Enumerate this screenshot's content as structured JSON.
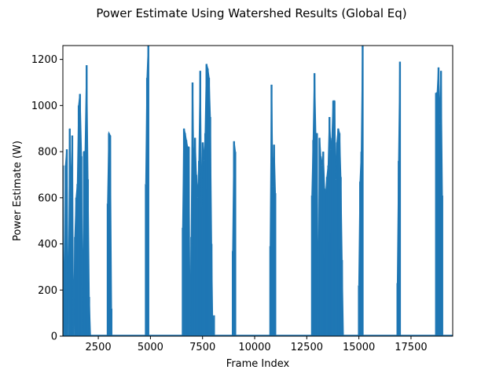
{
  "chart_data": {
    "type": "line",
    "title": "Power Estimate Using Watershed Results (Global Eq)",
    "xlabel": "Frame Index",
    "ylabel": "Power Estimate (W)",
    "xlim": [
      800,
      19500
    ],
    "ylim": [
      0,
      1260
    ],
    "xticks": [
      2500,
      5000,
      7500,
      10000,
      12500,
      15000,
      17500
    ],
    "yticks": [
      0,
      200,
      400,
      600,
      800,
      1000,
      1200
    ],
    "grid": false,
    "legend": "none",
    "series": [
      {
        "color": "#1f77b4",
        "bursts": [
          {
            "x": [
              800,
              870,
              930,
              990,
              1060,
              1130,
              1190,
              1250,
              1310,
              1380,
              1440,
              1500,
              1560,
              1620,
              1690,
              1750,
              1810,
              1870,
              1940,
              2000,
              2060,
              2120
            ],
            "y": [
              740,
              0,
              740,
              810,
              0,
              900,
              600,
              870,
              0,
              430,
              600,
              660,
              1000,
              1050,
              780,
              0,
              800,
              800,
              1175,
              680,
              170,
              0
            ]
          },
          {
            "x": [
              2950,
              3010,
              3070,
              3130
            ],
            "y": [
              575,
              880,
              870,
              120
            ]
          },
          {
            "x": [
              4780,
              4840,
              4900
            ],
            "y": [
              660,
              1120,
              1260
            ]
          },
          {
            "x": [
              6550,
              6610,
              6660,
              6720,
              6780,
              6840,
              6900,
              6960,
              7020,
              7080,
              7140,
              7200,
              7260,
              7330,
              7390,
              7450,
              7510,
              7570,
              7630,
              7690,
              7750,
              7810,
              7870,
              7930,
              7990,
              8050
            ],
            "y": [
              470,
              900,
              880,
              850,
              820,
              820,
              0,
              430,
              1100,
              710,
              860,
              700,
              600,
              760,
              1150,
              560,
              840,
              760,
              880,
              1180,
              1160,
              1120,
              950,
              400,
              0,
              90
            ]
          },
          {
            "x": [
              8950,
              9010,
              9070
            ],
            "y": [
              370,
              845,
              800
            ]
          },
          {
            "x": [
              10750,
              10810,
              10870,
              10930,
              10990
            ],
            "y": [
              390,
              1090,
              650,
              830,
              620
            ]
          },
          {
            "x": [
              12750,
              12810,
              12870,
              12930,
              12990,
              13050,
              13110,
              13170,
              13230,
              13290,
              13350,
              13410,
              13470,
              13530,
              13590,
              13650,
              13710,
              13770,
              13830,
              13890,
              13950,
              14010,
              14070,
              14130,
              14190,
              14250
            ],
            "y": [
              610,
              850,
              1140,
              870,
              880,
              0,
              860,
              780,
              740,
              800,
              640,
              620,
              690,
              740,
              950,
              810,
              860,
              1020,
              1020,
              680,
              840,
              900,
              880,
              690,
              330,
              0
            ]
          },
          {
            "x": [
              15000,
              15060,
              15120,
              15180
            ],
            "y": [
              220,
              670,
              800,
              1260
            ]
          },
          {
            "x": [
              16850,
              16910,
              16970
            ],
            "y": [
              230,
              760,
              1190
            ]
          },
          {
            "x": [
              18700,
              18760,
              18820,
              18880,
              18940,
              19000
            ],
            "y": [
              1055,
              1055,
              1165,
              920,
              1150,
              610
            ]
          }
        ]
      }
    ]
  }
}
